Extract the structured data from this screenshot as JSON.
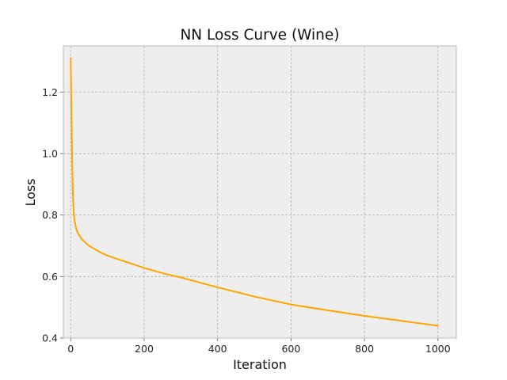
{
  "chart_data": {
    "type": "line",
    "title": "NN Loss Curve (Wine)",
    "xlabel": "Iteration",
    "ylabel": "Loss",
    "xlim": [
      -20,
      1050
    ],
    "ylim": [
      0.4,
      1.35
    ],
    "xticks": [
      0,
      200,
      400,
      600,
      800,
      1000
    ],
    "yticks": [
      0.4,
      0.6,
      0.8,
      1.0,
      1.2
    ],
    "xtick_labels": [
      "0",
      "200",
      "400",
      "600",
      "800",
      "1000"
    ],
    "ytick_labels": [
      "0.4",
      "0.6",
      "0.8",
      "1.0",
      "1.2"
    ],
    "grid": true,
    "legend": "none",
    "colors": {
      "line": "#ffa500",
      "plot_background": "#eeeeee",
      "grid": "#b0b0b0",
      "frame": "#bcbcbc"
    },
    "series": [
      {
        "x": [
          0,
          2,
          4,
          6,
          8,
          10,
          15,
          20,
          30,
          40,
          50,
          60,
          80,
          100,
          150,
          200,
          250,
          300,
          400,
          500,
          600,
          700,
          800,
          900,
          1000
        ],
        "values": [
          1.31,
          1.12,
          0.97,
          0.86,
          0.81,
          0.785,
          0.755,
          0.74,
          0.722,
          0.71,
          0.7,
          0.693,
          0.679,
          0.668,
          0.648,
          0.628,
          0.611,
          0.597,
          0.565,
          0.535,
          0.509,
          0.49,
          0.472,
          0.456,
          0.44
        ]
      }
    ]
  }
}
